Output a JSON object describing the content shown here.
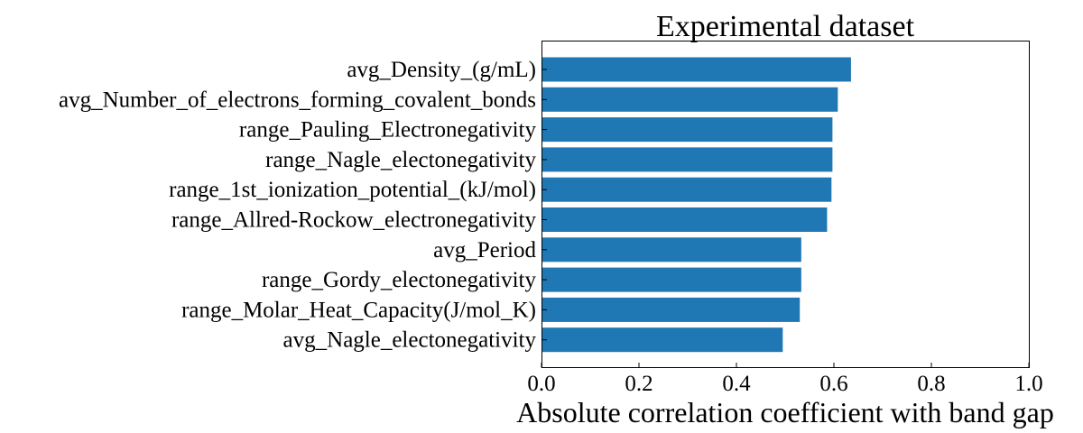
{
  "chart_data": {
    "type": "bar",
    "orientation": "horizontal",
    "title": "Experimental dataset",
    "xlabel": "Absolute correlation coefficient with band gap",
    "ylabel": "",
    "xlim": [
      0,
      1.0
    ],
    "xticks": [
      "0.0",
      "0.2",
      "0.4",
      "0.6",
      "0.8",
      "1.0"
    ],
    "grid": false,
    "bar_color": "#1f77b4",
    "categories": [
      "avg_Density_(g/mL)",
      "avg_Number_of_electrons_forming_covalent_bonds",
      "range_Pauling_Electronegativity",
      "range_Nagle_electonegativity",
      "range_1st_ionization_potential_(kJ/mol)",
      "range_Allred-Rockow_electronegativity",
      "avg_Period",
      "range_Gordy_electonegativity",
      "range_Molar_Heat_Capacity(J/mol_K)",
      "avg_Nagle_electonegativity"
    ],
    "values": [
      0.635,
      0.608,
      0.597,
      0.597,
      0.595,
      0.586,
      0.533,
      0.533,
      0.53,
      0.495
    ]
  }
}
